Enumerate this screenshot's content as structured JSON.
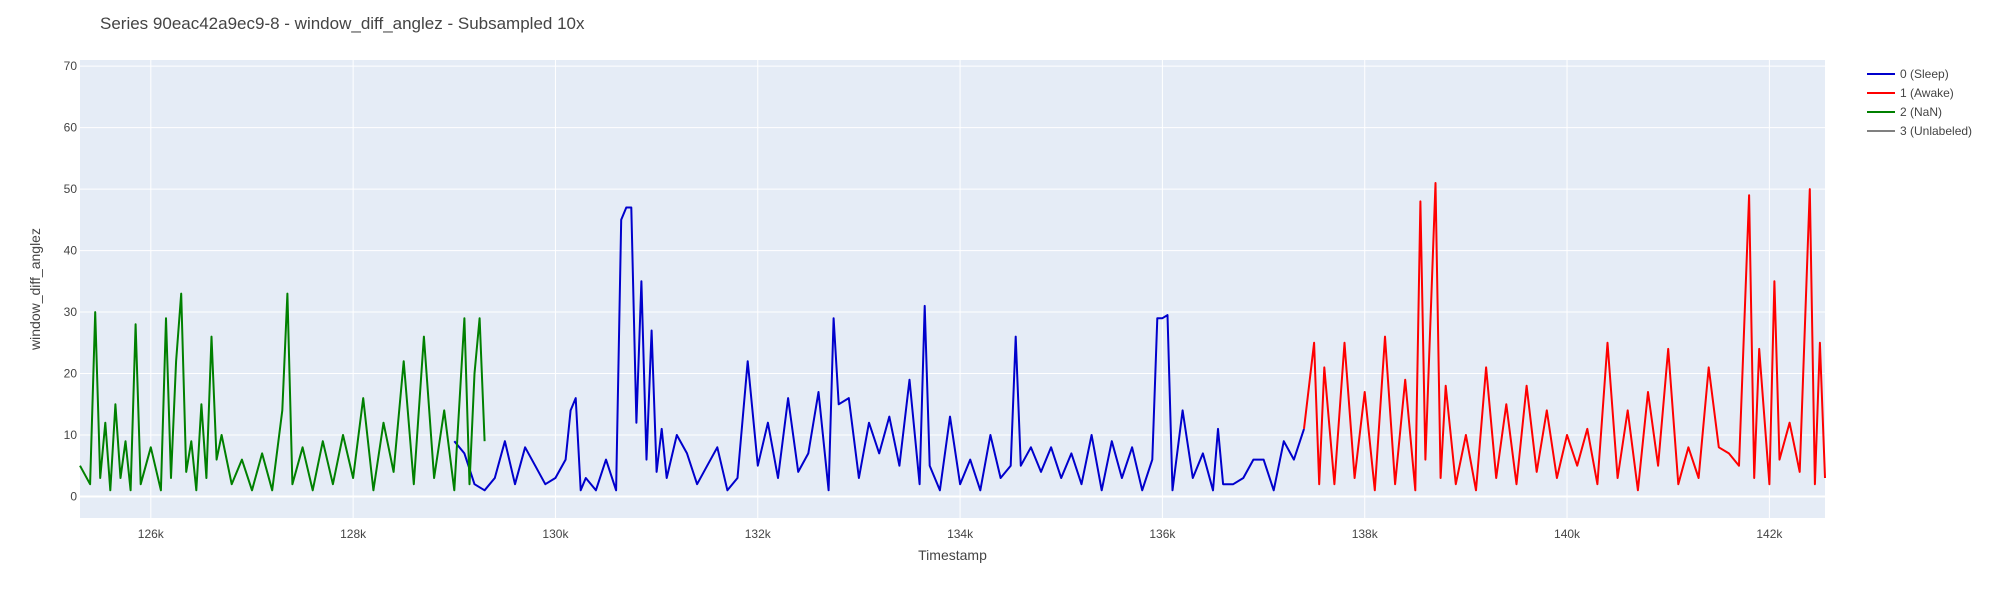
{
  "chart_data": {
    "type": "line",
    "title": "Series 90eac42a9ec9-8 - window_diff_anglez - Subsampled 10x",
    "xlabel": "Timestamp",
    "ylabel": "window_diff_anglez",
    "xlim": [
      125300,
      142550
    ],
    "ylim": [
      -3.5,
      71
    ],
    "x_tick_values": [
      126000,
      128000,
      130000,
      132000,
      134000,
      136000,
      138000,
      140000,
      142000
    ],
    "x_tick_labels": [
      "126k",
      "128k",
      "130k",
      "132k",
      "134k",
      "136k",
      "138k",
      "140k",
      "142k"
    ],
    "y_tick_values": [
      0,
      10,
      20,
      30,
      40,
      50,
      60,
      70
    ],
    "y_tick_labels": [
      "0",
      "10",
      "20",
      "30",
      "40",
      "50",
      "60",
      "70"
    ],
    "grid": true,
    "legend_position": "right",
    "plot_background": "#e5ecf6",
    "series": [
      {
        "name": "0 (Sleep)",
        "color": "#0000cc",
        "points": [
          [
            129000,
            9
          ],
          [
            129100,
            7
          ],
          [
            129200,
            2
          ],
          [
            129300,
            1
          ],
          [
            129400,
            3
          ],
          [
            129500,
            9
          ],
          [
            129600,
            2
          ],
          [
            129700,
            8
          ],
          [
            129800,
            5
          ],
          [
            129900,
            2
          ],
          [
            130000,
            3
          ],
          [
            130100,
            6
          ],
          [
            130150,
            14
          ],
          [
            130200,
            16
          ],
          [
            130250,
            1
          ],
          [
            130300,
            3
          ],
          [
            130400,
            1
          ],
          [
            130500,
            6
          ],
          [
            130600,
            1
          ],
          [
            130650,
            45
          ],
          [
            130700,
            47
          ],
          [
            130750,
            47
          ],
          [
            130800,
            12
          ],
          [
            130850,
            35
          ],
          [
            130900,
            6
          ],
          [
            130950,
            27
          ],
          [
            131000,
            4
          ],
          [
            131050,
            11
          ],
          [
            131100,
            3
          ],
          [
            131200,
            10
          ],
          [
            131300,
            7
          ],
          [
            131400,
            2
          ],
          [
            131500,
            5
          ],
          [
            131600,
            8
          ],
          [
            131700,
            1
          ],
          [
            131800,
            3
          ],
          [
            131900,
            22
          ],
          [
            132000,
            5
          ],
          [
            132100,
            12
          ],
          [
            132200,
            3
          ],
          [
            132300,
            16
          ],
          [
            132400,
            4
          ],
          [
            132500,
            7
          ],
          [
            132600,
            17
          ],
          [
            132700,
            1
          ],
          [
            132750,
            29
          ],
          [
            132800,
            15
          ],
          [
            132900,
            16
          ],
          [
            133000,
            3
          ],
          [
            133100,
            12
          ],
          [
            133200,
            7
          ],
          [
            133300,
            13
          ],
          [
            133400,
            5
          ],
          [
            133500,
            19
          ],
          [
            133600,
            2
          ],
          [
            133650,
            31
          ],
          [
            133700,
            5
          ],
          [
            133800,
            1
          ],
          [
            133900,
            13
          ],
          [
            134000,
            2
          ],
          [
            134100,
            6
          ],
          [
            134200,
            1
          ],
          [
            134300,
            10
          ],
          [
            134400,
            3
          ],
          [
            134500,
            5
          ],
          [
            134550,
            26
          ],
          [
            134600,
            5
          ],
          [
            134700,
            8
          ],
          [
            134800,
            4
          ],
          [
            134900,
            8
          ],
          [
            135000,
            3
          ],
          [
            135100,
            7
          ],
          [
            135200,
            2
          ],
          [
            135300,
            10
          ],
          [
            135400,
            1
          ],
          [
            135500,
            9
          ],
          [
            135600,
            3
          ],
          [
            135700,
            8
          ],
          [
            135800,
            1
          ],
          [
            135900,
            6
          ],
          [
            135950,
            29
          ],
          [
            136000,
            29
          ],
          [
            136050,
            29.5
          ],
          [
            136100,
            1
          ],
          [
            136200,
            14
          ],
          [
            136300,
            3
          ],
          [
            136400,
            7
          ],
          [
            136500,
            1
          ],
          [
            136550,
            11
          ],
          [
            136600,
            2
          ],
          [
            136700,
            2
          ],
          [
            136800,
            3
          ],
          [
            136900,
            6
          ],
          [
            137000,
            6
          ],
          [
            137100,
            1
          ],
          [
            137200,
            9
          ],
          [
            137300,
            6
          ],
          [
            137400,
            11
          ]
        ]
      },
      {
        "name": "1 (Awake)",
        "color": "#ff0000",
        "points": [
          [
            137400,
            11
          ],
          [
            137500,
            25
          ],
          [
            137550,
            2
          ],
          [
            137600,
            21
          ],
          [
            137700,
            2
          ],
          [
            137800,
            25
          ],
          [
            137900,
            3
          ],
          [
            138000,
            17
          ],
          [
            138100,
            1
          ],
          [
            138200,
            26
          ],
          [
            138300,
            2
          ],
          [
            138400,
            19
          ],
          [
            138500,
            1
          ],
          [
            138550,
            48
          ],
          [
            138600,
            6
          ],
          [
            138700,
            51
          ],
          [
            138750,
            3
          ],
          [
            138800,
            18
          ],
          [
            138900,
            2
          ],
          [
            139000,
            10
          ],
          [
            139100,
            1
          ],
          [
            139200,
            21
          ],
          [
            139300,
            3
          ],
          [
            139400,
            15
          ],
          [
            139500,
            2
          ],
          [
            139600,
            18
          ],
          [
            139700,
            4
          ],
          [
            139800,
            14
          ],
          [
            139900,
            3
          ],
          [
            140000,
            10
          ],
          [
            140100,
            5
          ],
          [
            140200,
            11
          ],
          [
            140300,
            2
          ],
          [
            140400,
            25
          ],
          [
            140500,
            3
          ],
          [
            140600,
            14
          ],
          [
            140700,
            1
          ],
          [
            140800,
            17
          ],
          [
            140900,
            5
          ],
          [
            141000,
            24
          ],
          [
            141100,
            2
          ],
          [
            141200,
            8
          ],
          [
            141300,
            3
          ],
          [
            141400,
            21
          ],
          [
            141500,
            8
          ],
          [
            141600,
            7
          ],
          [
            141700,
            5
          ],
          [
            141800,
            49
          ],
          [
            141850,
            3
          ],
          [
            141900,
            24
          ],
          [
            142000,
            2
          ],
          [
            142050,
            35
          ],
          [
            142100,
            6
          ],
          [
            142200,
            12
          ],
          [
            142300,
            4
          ],
          [
            142400,
            50
          ],
          [
            142450,
            2
          ],
          [
            142500,
            25
          ],
          [
            142550,
            3
          ]
        ]
      },
      {
        "name": "2 (NaN)",
        "color": "#008000",
        "points": [
          [
            125300,
            5
          ],
          [
            125400,
            2
          ],
          [
            125450,
            30
          ],
          [
            125500,
            3
          ],
          [
            125550,
            12
          ],
          [
            125600,
            1
          ],
          [
            125650,
            15
          ],
          [
            125700,
            3
          ],
          [
            125750,
            9
          ],
          [
            125800,
            1
          ],
          [
            125850,
            28
          ],
          [
            125900,
            2
          ],
          [
            126000,
            8
          ],
          [
            126100,
            1
          ],
          [
            126150,
            29
          ],
          [
            126200,
            3
          ],
          [
            126250,
            22
          ],
          [
            126300,
            33
          ],
          [
            126350,
            4
          ],
          [
            126400,
            9
          ],
          [
            126450,
            1
          ],
          [
            126500,
            15
          ],
          [
            126550,
            3
          ],
          [
            126600,
            26
          ],
          [
            126650,
            6
          ],
          [
            126700,
            10
          ],
          [
            126800,
            2
          ],
          [
            126900,
            6
          ],
          [
            127000,
            1
          ],
          [
            127100,
            7
          ],
          [
            127200,
            1
          ],
          [
            127300,
            14
          ],
          [
            127350,
            33
          ],
          [
            127400,
            2
          ],
          [
            127500,
            8
          ],
          [
            127600,
            1
          ],
          [
            127700,
            9
          ],
          [
            127800,
            2
          ],
          [
            127900,
            10
          ],
          [
            128000,
            3
          ],
          [
            128100,
            16
          ],
          [
            128200,
            1
          ],
          [
            128300,
            12
          ],
          [
            128400,
            4
          ],
          [
            128500,
            22
          ],
          [
            128600,
            2
          ],
          [
            128700,
            26
          ],
          [
            128800,
            3
          ],
          [
            128900,
            14
          ],
          [
            129000,
            1
          ],
          [
            129100,
            29
          ],
          [
            129150,
            2
          ],
          [
            129200,
            20
          ],
          [
            129250,
            29
          ],
          [
            129300,
            9
          ]
        ]
      },
      {
        "name": "3 (Unlabeled)",
        "color": "#808080",
        "points": []
      }
    ]
  }
}
